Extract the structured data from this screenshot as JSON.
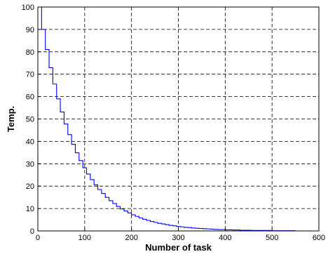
{
  "chart_data": {
    "type": "line",
    "title": "",
    "xlabel": "Number of task",
    "ylabel": "Temp.",
    "xlim": [
      0,
      600
    ],
    "ylim": [
      0,
      100
    ],
    "xticks": [
      0,
      100,
      200,
      300,
      400,
      500,
      600
    ],
    "yticks": [
      0,
      10,
      20,
      30,
      40,
      50,
      60,
      70,
      80,
      90,
      100
    ],
    "grid": true,
    "legend": "none",
    "series": [
      {
        "color": "#0000ff",
        "style": "step",
        "x": [
          0,
          8,
          16,
          24,
          32,
          40,
          48,
          56,
          64,
          72,
          80,
          88,
          96,
          104,
          112,
          120,
          128,
          136,
          144,
          152,
          160,
          168,
          176,
          184,
          192,
          200,
          208,
          216,
          224,
          232,
          240,
          248,
          256,
          264,
          272,
          280,
          288,
          296,
          304,
          312,
          320,
          328,
          336,
          344,
          352,
          360,
          368,
          376,
          384,
          392,
          400,
          408,
          416,
          424,
          432,
          440,
          448,
          456,
          464,
          472,
          480,
          488,
          496,
          504,
          512,
          520,
          528,
          536,
          544,
          550
        ],
        "y": [
          100,
          90,
          81,
          72.9,
          65.6,
          59,
          53.1,
          47.8,
          43,
          38.7,
          34.9,
          31.4,
          28.2,
          25.4,
          22.9,
          20.6,
          18.5,
          16.7,
          15,
          13.5,
          12.2,
          10.9,
          9.8,
          8.9,
          8,
          7.2,
          6.5,
          5.8,
          5.2,
          4.7,
          4.2,
          3.8,
          3.4,
          3.1,
          2.8,
          2.5,
          2.3,
          2,
          1.8,
          1.6,
          1.5,
          1.3,
          1.2,
          1.1,
          1,
          0.9,
          0.8,
          0.7,
          0.6,
          0.6,
          0.5,
          0.5,
          0.4,
          0.4,
          0.3,
          0.3,
          0.3,
          0.2,
          0.2,
          0.2,
          0.2,
          0.2,
          0.1,
          0.1,
          0.1,
          0.1,
          0.1,
          0.1,
          0.1,
          0.1
        ]
      }
    ]
  }
}
